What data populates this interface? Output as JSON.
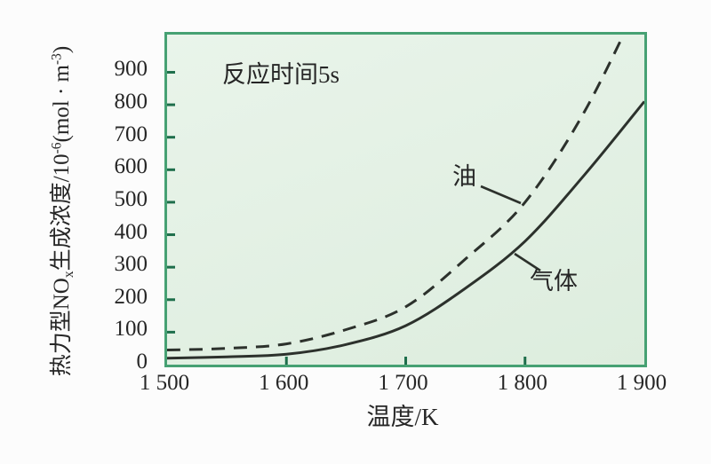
{
  "figure": {
    "annotation": "反应时间5s",
    "x_axis": {
      "title": "温度/K",
      "tick_labels": [
        "1 500",
        "1 600",
        "1 700",
        "1 800",
        "1 900"
      ]
    },
    "y_axis": {
      "tick_labels": [
        "0",
        "100",
        "200",
        "300",
        "400",
        "500",
        "600",
        "700",
        "800",
        "900"
      ],
      "title_parts": {
        "base1": "热力型NO",
        "sub1": "x",
        "base2": "生成浓度/10",
        "sup1": "-6",
        "base3": "(mol · m",
        "sup2": "-3",
        "base4": ")"
      }
    },
    "curve_labels": {
      "oil": "油",
      "gas": "气体"
    }
  },
  "colors": {
    "frame": "#46a173",
    "plot_background": "#e3f0e4",
    "tick": "#1e6e4b",
    "curve": "#2c312c",
    "text": "#262626",
    "page_background": "#fcfcfc"
  },
  "chart_data": {
    "type": "line",
    "title": "反应时间5s",
    "xlabel": "温度/K",
    "ylabel": "热力型NOx生成浓度/10^-6 (mol·m^-3)",
    "x": [
      1500,
      1550,
      1600,
      1650,
      1700,
      1750,
      1800,
      1850,
      1900
    ],
    "series": [
      {
        "name": "油",
        "style": "dashed",
        "values": [
          45,
          50,
          64,
          108,
          178,
          325,
          500,
          780,
          1150
        ]
      },
      {
        "name": "气体",
        "style": "solid",
        "values": [
          20,
          24,
          32,
          62,
          120,
          235,
          380,
          585,
          810
        ]
      }
    ],
    "x_ticks": [
      1500,
      1600,
      1700,
      1800,
      1900
    ],
    "y_ticks": [
      0,
      100,
      200,
      300,
      400,
      500,
      600,
      700,
      800,
      900
    ],
    "xlim": [
      1500,
      1900
    ],
    "ylim": [
      0,
      1016
    ],
    "grid": false,
    "legend": "inline-curve-labels"
  }
}
